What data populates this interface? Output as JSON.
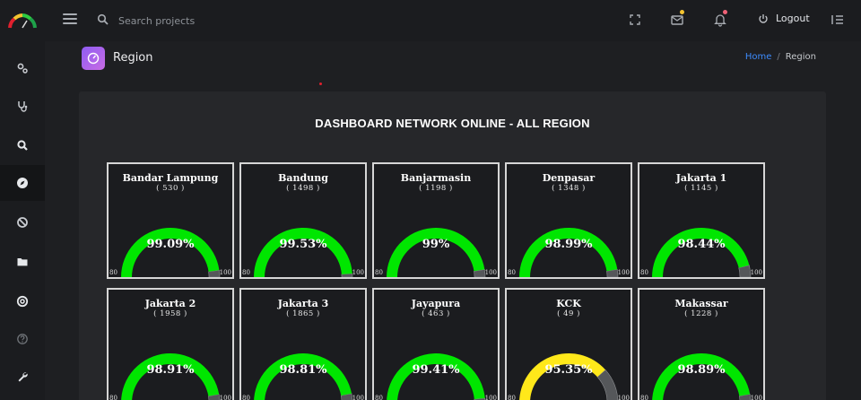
{
  "header": {
    "search_placeholder": "Search projects",
    "logout_label": "Logout",
    "mail_badge_color": "#f4c430",
    "bell_badge_color": "#f06277"
  },
  "sidebar": {
    "items": [
      {
        "icon": "gears-icon"
      },
      {
        "icon": "stethoscope-icon"
      },
      {
        "icon": "search-icon"
      },
      {
        "icon": "compass-icon",
        "active": true
      },
      {
        "icon": "ban-icon"
      },
      {
        "icon": "folder-icon"
      },
      {
        "icon": "life-ring-icon"
      },
      {
        "icon": "question-icon"
      },
      {
        "icon": "wrench-icon"
      }
    ]
  },
  "page": {
    "title": "Region",
    "breadcrumb": {
      "home": "Home",
      "separator": "/",
      "current": "Region"
    }
  },
  "dashboard": {
    "title": "DASHBOARD NETWORK ONLINE - ALL REGION",
    "gauge_min": "80",
    "gauge_max": "100",
    "colors": {
      "good": "#00e600",
      "warn": "#ffe81a",
      "remainder": "#55575a"
    },
    "regions": [
      {
        "name": "Bandar Lampung",
        "count": "( 530 )",
        "value": 99.09,
        "label": "99.09%",
        "status": "good"
      },
      {
        "name": "Bandung",
        "count": "( 1498 )",
        "value": 99.53,
        "label": "99.53%",
        "status": "good"
      },
      {
        "name": "Banjarmasin",
        "count": "( 1198 )",
        "value": 99,
        "label": "99%",
        "status": "good"
      },
      {
        "name": "Denpasar",
        "count": "( 1348 )",
        "value": 98.99,
        "label": "98.99%",
        "status": "good"
      },
      {
        "name": "Jakarta 1",
        "count": "( 1145 )",
        "value": 98.44,
        "label": "98.44%",
        "status": "good"
      },
      {
        "name": "Jakarta 2",
        "count": "( 1958 )",
        "value": 98.91,
        "label": "98.91%",
        "status": "good"
      },
      {
        "name": "Jakarta 3",
        "count": "( 1865 )",
        "value": 98.81,
        "label": "98.81%",
        "status": "good"
      },
      {
        "name": "Jayapura",
        "count": "( 463 )",
        "value": 99.41,
        "label": "99.41%",
        "status": "good"
      },
      {
        "name": "KCK",
        "count": "( 49 )",
        "value": 95.35,
        "label": "95.35%",
        "status": "warn"
      },
      {
        "name": "Makassar",
        "count": "( 1228 )",
        "value": 98.89,
        "label": "98.89%",
        "status": "good"
      }
    ]
  }
}
